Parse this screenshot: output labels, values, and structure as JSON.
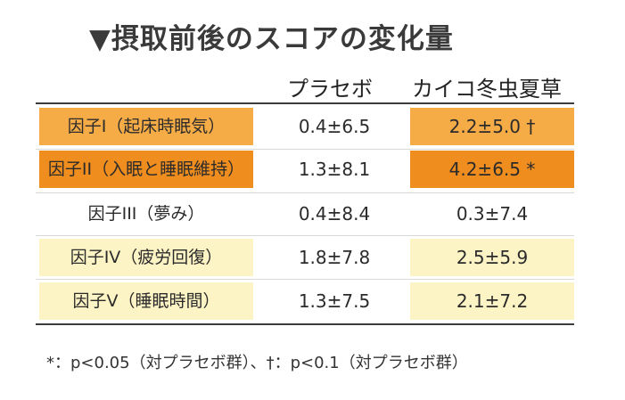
{
  "title": "▼摂取前後のスコアの変化量",
  "columns": {
    "placebo": "プラセボ",
    "kaiko": "カイコ冬虫夏草"
  },
  "rows": [
    {
      "label": "因子I（起床時眠気）",
      "placebo": "0.4±6.5",
      "kaiko": "2.2±5.0 †",
      "label_bg": "#f6ac46",
      "kaiko_bg": "#f6ac46"
    },
    {
      "label": "因子II（入眠と睡眠維持）",
      "placebo": "1.3±8.1",
      "kaiko": "4.2±6.5 *",
      "label_bg": "#ef8d1e",
      "kaiko_bg": "#ef8d1e"
    },
    {
      "label": "因子III（夢み）",
      "placebo": "0.4±8.4",
      "kaiko": "0.3±7.4",
      "label_bg": "",
      "kaiko_bg": ""
    },
    {
      "label": "因子IV（疲労回復）",
      "placebo": "1.8±7.8",
      "kaiko": "2.5±5.9",
      "label_bg": "#fdf4c5",
      "kaiko_bg": "#fdf4c5"
    },
    {
      "label": "因子V（睡眠時間）",
      "placebo": "1.3±7.5",
      "kaiko": "2.1±7.2",
      "label_bg": "#fdf4c5",
      "kaiko_bg": "#fdf4c5"
    }
  ],
  "footnote": "*：p<0.05（対プラセボ群）、†：p<0.1（対プラセボ群）"
}
